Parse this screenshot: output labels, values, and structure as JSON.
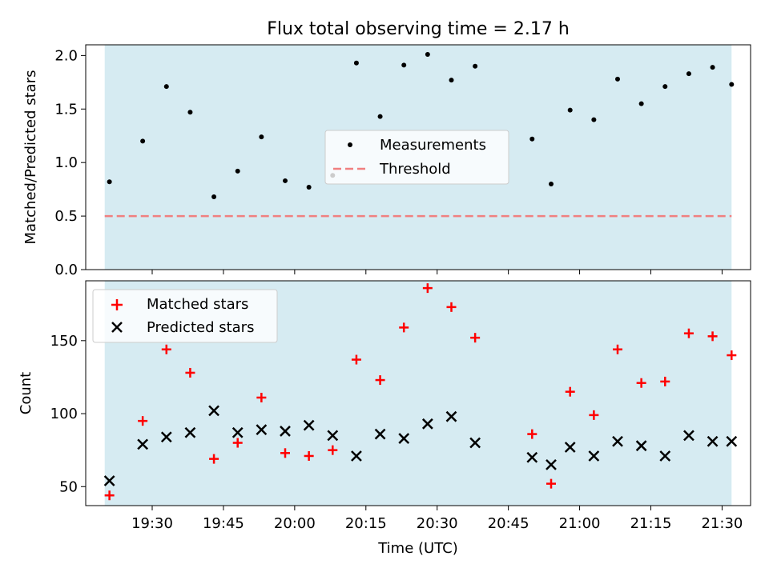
{
  "title": "Flux total observing time = 2.17 h",
  "colors": {
    "span": "#add8e6",
    "matched": "#ff0000",
    "predicted": "#000000",
    "threshold": "#f08080",
    "measurement": "#000000"
  },
  "chart_data": [
    {
      "type": "scatter",
      "panel": "top",
      "ylabel": "Matched/Predicted stars",
      "ylim": [
        0,
        2.1
      ],
      "yticks": [
        0.0,
        0.5,
        1.0,
        1.5,
        2.0
      ],
      "ytick_labels": [
        "0.0",
        "0.5",
        "1.0",
        "1.5",
        "2.0"
      ],
      "x_span": [
        "19:20",
        "21:32"
      ],
      "legend": {
        "placement": "center",
        "entries": [
          "Measurements",
          "Threshold"
        ]
      },
      "threshold": 0.5,
      "series": [
        {
          "name": "Measurements",
          "x": [
            "19:21",
            "19:28",
            "19:33",
            "19:38",
            "19:43",
            "19:48",
            "19:53",
            "19:58",
            "20:03",
            "20:08",
            "20:13",
            "20:18",
            "20:23",
            "20:28",
            "20:33",
            "20:38",
            "20:50",
            "20:54",
            "20:58",
            "21:03",
            "21:08",
            "21:13",
            "21:18",
            "21:23",
            "21:28",
            "21:32"
          ],
          "values": [
            0.82,
            1.2,
            1.71,
            1.47,
            0.68,
            0.92,
            1.24,
            0.83,
            0.77,
            0.88,
            1.93,
            1.43,
            1.91,
            2.01,
            1.77,
            1.9,
            1.22,
            0.8,
            1.49,
            1.4,
            1.78,
            1.55,
            1.71,
            1.83,
            1.89,
            1.73
          ]
        }
      ]
    },
    {
      "type": "scatter",
      "panel": "bottom",
      "xlabel": "Time (UTC)",
      "ylabel": "Count",
      "ylim": [
        37,
        191
      ],
      "yticks": [
        50,
        100,
        150
      ],
      "ytick_labels": [
        "50",
        "100",
        "150"
      ],
      "xlim": [
        "19:16",
        "21:36"
      ],
      "xticks": [
        "19:30",
        "19:45",
        "20:00",
        "20:15",
        "20:30",
        "20:45",
        "21:00",
        "21:15",
        "21:30"
      ],
      "x_span": [
        "19:20",
        "21:32"
      ],
      "legend": {
        "placement": "top-left",
        "entries": [
          "Matched stars",
          "Predicted stars"
        ]
      },
      "x": [
        "19:21",
        "19:28",
        "19:33",
        "19:38",
        "19:43",
        "19:48",
        "19:53",
        "19:58",
        "20:03",
        "20:08",
        "20:13",
        "20:18",
        "20:23",
        "20:28",
        "20:33",
        "20:38",
        "20:50",
        "20:54",
        "20:58",
        "21:03",
        "21:08",
        "21:13",
        "21:18",
        "21:23",
        "21:28",
        "21:32"
      ],
      "series": [
        {
          "name": "Matched stars",
          "values": [
            44,
            95,
            144,
            128,
            69,
            80,
            111,
            73,
            71,
            75,
            137,
            123,
            159,
            186,
            173,
            152,
            86,
            52,
            115,
            99,
            144,
            121,
            122,
            155,
            153,
            140
          ]
        },
        {
          "name": "Predicted stars",
          "values": [
            54,
            79,
            84,
            87,
            102,
            87,
            89,
            88,
            92,
            85,
            71,
            86,
            83,
            93,
            98,
            80,
            70,
            65,
            77,
            71,
            81,
            78,
            71,
            85,
            81,
            81
          ]
        }
      ]
    }
  ]
}
